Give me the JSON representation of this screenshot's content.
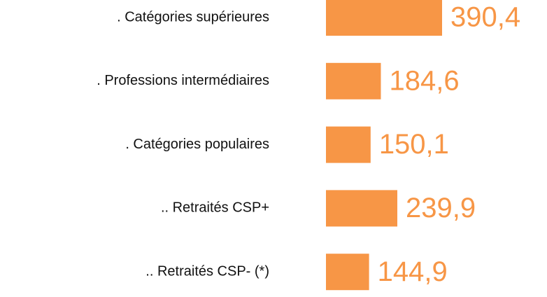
{
  "chart_data": {
    "type": "hbar",
    "categories": [
      ". Catégories supérieures",
      ". Professions intermédiaires",
      ". Catégories populaires",
      ".. Retraités CSP+",
      ".. Retraités CSP- (*)"
    ],
    "values": [
      390.4,
      184.6,
      150.1,
      239.9,
      144.9
    ],
    "value_labels": [
      "390,4",
      "184,6",
      "150,1",
      "239,9",
      "144,9"
    ],
    "color": "#f79646"
  }
}
